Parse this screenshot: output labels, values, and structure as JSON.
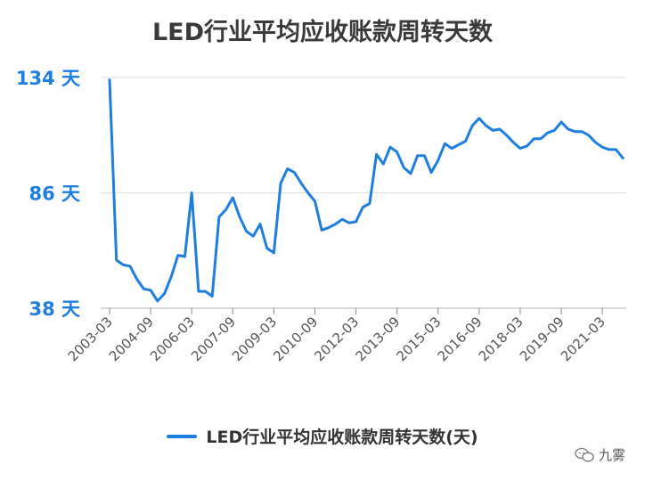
{
  "chart_data": {
    "type": "line",
    "title": "LED行业平均应收账款周转天数",
    "ylim": [
      38,
      134
    ],
    "y_ticks": [
      {
        "value": 134,
        "label": "134 天"
      },
      {
        "value": 86,
        "label": "86 天"
      },
      {
        "value": 38,
        "label": "38 天"
      }
    ],
    "x_tick_labels": [
      "2003-03",
      "2004-09",
      "2006-03",
      "2007-09",
      "2009-03",
      "2010-09",
      "2012-03",
      "2013-09",
      "2015-03",
      "2016-09",
      "2018-03",
      "2019-09",
      "2021-03"
    ],
    "x_tick_every": 6,
    "grid": true,
    "legend_position": "bottom",
    "series": [
      {
        "name": "LED行业平均应收账款周转天数(天)",
        "color": "#1f7fe0",
        "x": [
          "2003-03",
          "2003-06",
          "2003-09",
          "2003-12",
          "2004-03",
          "2004-06",
          "2004-09",
          "2004-12",
          "2005-03",
          "2005-06",
          "2005-09",
          "2005-12",
          "2006-03",
          "2006-06",
          "2006-09",
          "2006-12",
          "2007-03",
          "2007-06",
          "2007-09",
          "2007-12",
          "2008-03",
          "2008-06",
          "2008-09",
          "2008-12",
          "2009-03",
          "2009-06",
          "2009-09",
          "2009-12",
          "2010-03",
          "2010-06",
          "2010-09",
          "2010-12",
          "2011-03",
          "2011-06",
          "2011-09",
          "2011-12",
          "2012-03",
          "2012-06",
          "2012-09",
          "2012-12",
          "2013-03",
          "2013-06",
          "2013-09",
          "2013-12",
          "2014-03",
          "2014-06",
          "2014-09",
          "2014-12",
          "2015-03",
          "2015-06",
          "2015-09",
          "2015-12",
          "2016-03",
          "2016-06",
          "2016-09",
          "2016-12",
          "2017-03",
          "2017-06",
          "2017-09",
          "2017-12",
          "2018-03",
          "2018-06",
          "2018-09",
          "2018-12",
          "2019-03",
          "2019-06",
          "2019-09",
          "2019-12",
          "2020-03",
          "2020-06",
          "2020-09",
          "2020-12",
          "2021-03",
          "2021-06",
          "2021-09",
          "2021-12"
        ],
        "values": [
          133,
          58,
          56,
          55.5,
          50,
          46,
          45.5,
          41,
          44,
          51,
          60,
          59.5,
          86,
          45,
          45,
          43,
          76,
          79,
          84,
          76,
          70,
          68,
          73,
          63,
          61,
          90,
          96,
          94.5,
          90,
          86,
          82.5,
          70.5,
          71.5,
          73,
          75,
          73.5,
          74,
          80,
          81.5,
          102,
          98,
          105,
          103,
          96.5,
          94,
          101.5,
          101.5,
          94.5,
          99.5,
          106.5,
          104.5,
          106,
          107.5,
          114,
          117,
          114,
          112,
          112.5,
          110,
          107,
          104.5,
          105.5,
          108.5,
          108.5,
          111,
          112,
          115.5,
          112.5,
          111.5,
          111.5,
          110,
          107,
          105,
          104,
          104,
          100.5
        ]
      }
    ]
  },
  "legend": {
    "label": "LED行业平均应收账款周转天数(天)",
    "color": "#1f7fe0"
  },
  "watermark": {
    "text": "九雾"
  }
}
